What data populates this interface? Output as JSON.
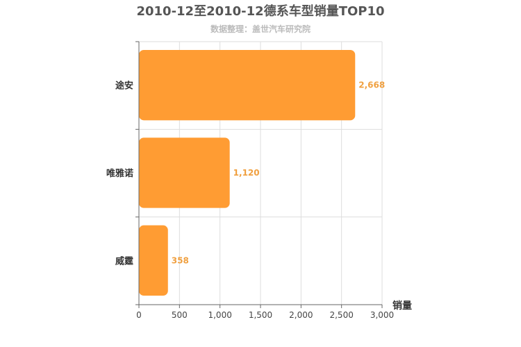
{
  "title": "2010-12至2010-12德系车型销量TOP10",
  "subtitle": "数据整理：盖世汽车研究院",
  "colors": {
    "bar": "#ff9c33",
    "data_label": "#f0a040",
    "grid": "#dddddd",
    "axis": "#666666"
  },
  "chart_data": {
    "type": "bar",
    "orientation": "horizontal",
    "categories": [
      "途安",
      "唯雅诺",
      "威霆"
    ],
    "values": [
      2668,
      1120,
      358
    ],
    "data_labels": [
      "2,668",
      "1,120",
      "358"
    ],
    "xlabel": "销量",
    "xlim": [
      0,
      3000
    ],
    "x_ticks": [
      0,
      500,
      1000,
      1500,
      2000,
      2500,
      3000
    ],
    "x_tick_labels": [
      "0",
      "500",
      "1,000",
      "1,500",
      "2,000",
      "2,500",
      "3,000"
    ],
    "grid": true
  }
}
